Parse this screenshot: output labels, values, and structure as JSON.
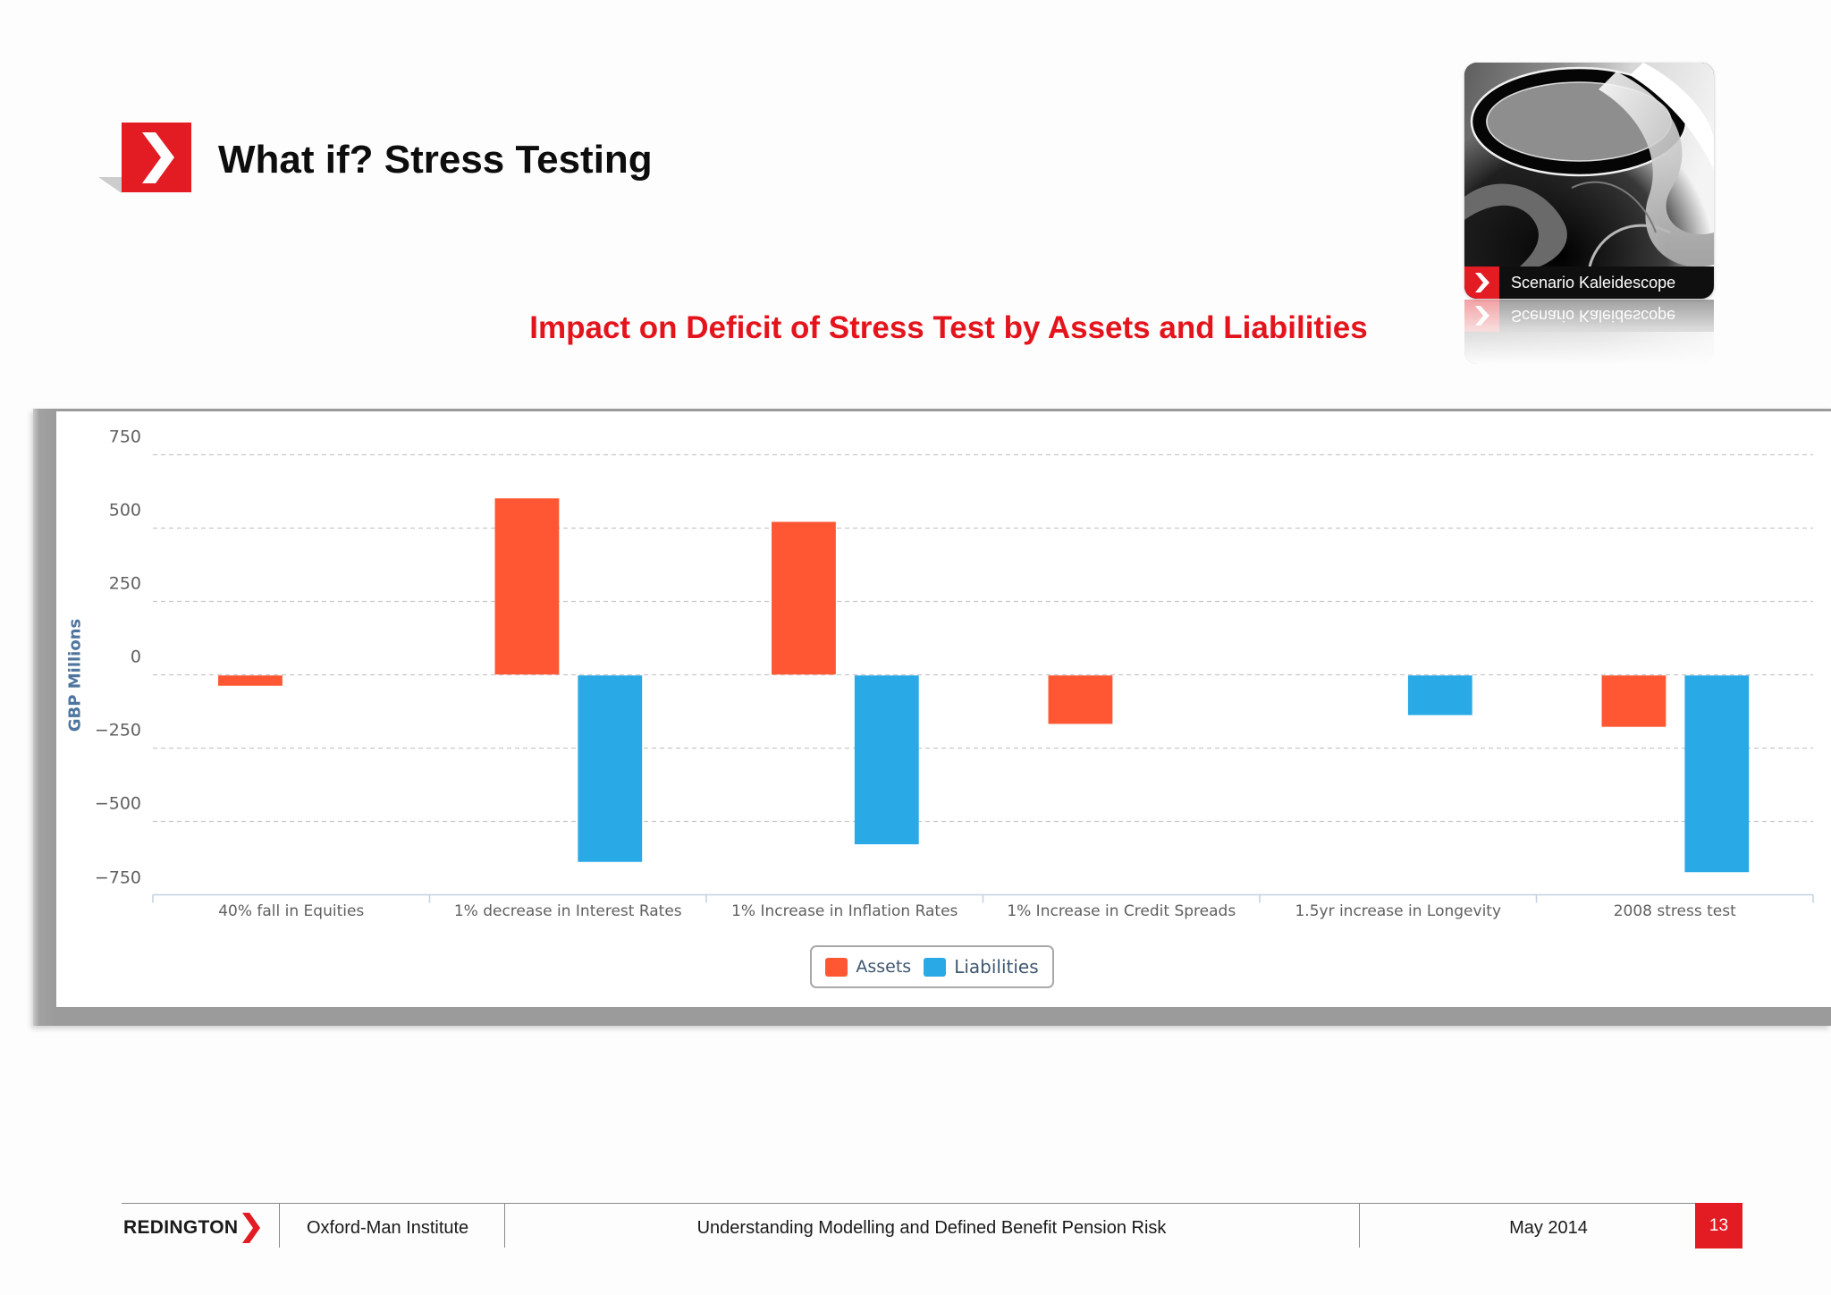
{
  "slide": {
    "title": "What if? Stress Testing"
  },
  "image_card": {
    "caption": "Scenario Kaleidescope"
  },
  "footer": {
    "brand": "REDINGTON",
    "institution": "Oxford-Man Institute",
    "presentation": "Understanding Modelling and Defined Benefit Pension Risk",
    "date": "May 2014",
    "page_number": "13"
  },
  "colors": {
    "accent": "#e31b23",
    "title_red": "#e4141c",
    "axis_title": "#4d759e"
  },
  "chart_data": {
    "type": "bar",
    "title": "Impact on Deficit of Stress Test by Assets and Liabilities",
    "ylabel": "GBP Millions",
    "ylim": [
      -750,
      750
    ],
    "yticks": [
      750,
      500,
      250,
      0,
      -250,
      -500,
      -750
    ],
    "ytick_labels": [
      "750",
      "500",
      "250",
      "0",
      "−250",
      "−500",
      "−750"
    ],
    "grid": true,
    "legend": "bottom-center",
    "categories": [
      "40% fall in Equities",
      "1% decrease in Interest Rates",
      "1% Increase in Inflation Rates",
      "1% Increase in Credit Spreads",
      "1.5yr increase in Longevity",
      "2008 stress test"
    ],
    "series": [
      {
        "name": "Assets",
        "color": "#ff5733",
        "values": [
          -35,
          600,
          520,
          -165,
          null,
          -175
        ]
      },
      {
        "name": "Liabilities",
        "color": "#29a9e6",
        "values": [
          null,
          -635,
          -575,
          null,
          -135,
          -670
        ]
      }
    ]
  }
}
